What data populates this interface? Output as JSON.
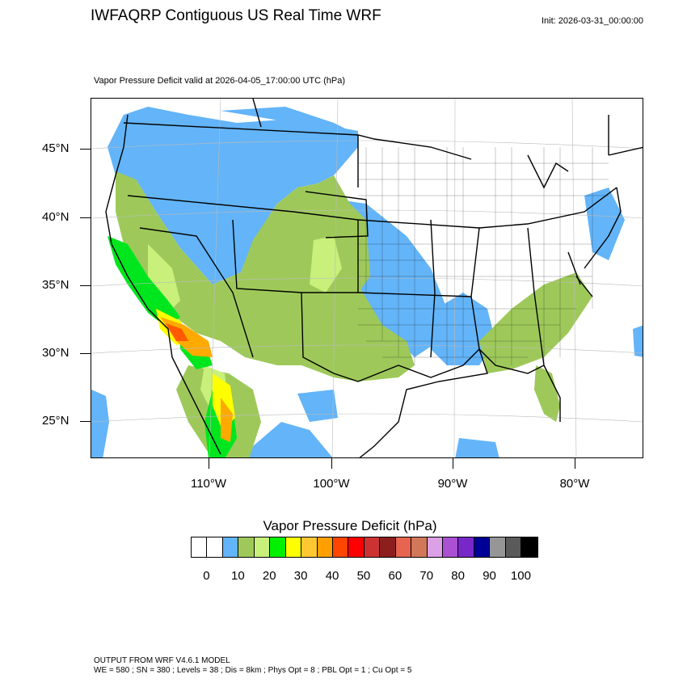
{
  "header": {
    "title": "IWFAQRP Contiguous US Real Time WRF",
    "init": "Init: 2026-03-31_00:00:00",
    "subtitle": "Vapor Pressure Deficit valid at 2026-04-05_17:00:00 UTC   (hPa)"
  },
  "map": {
    "lat_labels": [
      "45°N",
      "40°N",
      "35°N",
      "30°N",
      "25°N"
    ],
    "lon_labels": [
      "110°W",
      "100°W",
      "90°W",
      "80°W"
    ],
    "colors": {
      "water_blue": "#63b4f8",
      "light_green": "#9ec95a",
      "yellow_green": "#c8f07a",
      "green": "#00e61e",
      "yellow": "#ffff00",
      "orange": "#ffaa00",
      "red_orange": "#ff5a00"
    }
  },
  "legend": {
    "title": "Vapor Pressure Deficit  (hPa)",
    "colors": [
      "#ffffff",
      "#ffffff",
      "#63b4f8",
      "#9ec95a",
      "#c8f07a",
      "#00f000",
      "#ffff00",
      "#ffc832",
      "#ffa000",
      "#ff4600",
      "#ff0000",
      "#cd3232",
      "#8c1e1e",
      "#e66450",
      "#d2785a",
      "#dca0e6",
      "#aa50d2",
      "#7828c8",
      "#000096",
      "#969696",
      "#5a5a5a",
      "#000000"
    ],
    "tick_labels": [
      "0",
      "10",
      "20",
      "30",
      "40",
      "50",
      "60",
      "70",
      "80",
      "90",
      "100"
    ]
  },
  "footer": {
    "line1": "OUTPUT FROM WRF V4.6.1 MODEL",
    "line2": "WE = 580 ; SN = 380 ; Levels = 38 ; Dis = 8km ; Phys Opt = 8 ; PBL Opt = 1 ; Cu Opt = 5"
  }
}
